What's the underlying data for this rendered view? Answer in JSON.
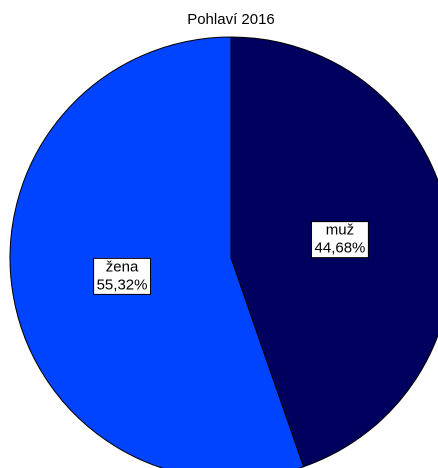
{
  "chart_data": {
    "type": "pie",
    "title": "Pohlaví 2016",
    "categories": [
      "muž",
      "žena"
    ],
    "values": [
      44.68,
      55.32
    ],
    "value_labels": [
      "44,68%",
      "55,32%"
    ],
    "colors": [
      "#00005e",
      "#0044ff"
    ]
  }
}
